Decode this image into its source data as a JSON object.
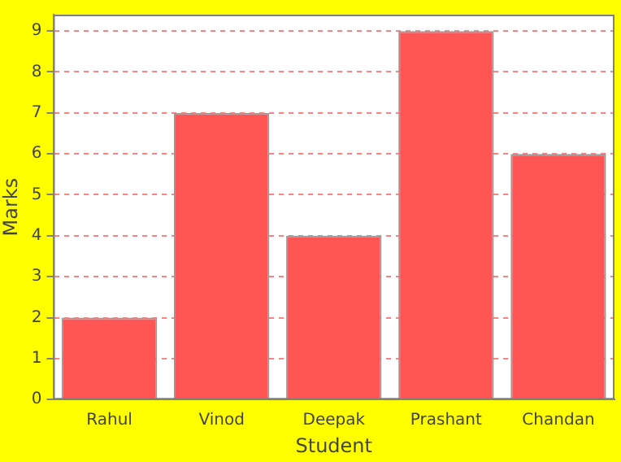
{
  "chart_data": {
    "type": "bar",
    "xlabel": "Student",
    "ylabel": "Marks",
    "categories": [
      "Rahul",
      "Vinod",
      "Deepak",
      "Prashant",
      "Chandan"
    ],
    "values": [
      2,
      7,
      4,
      9,
      6
    ],
    "color": "#ff5555",
    "ylim": [
      0,
      9.4
    ],
    "yticks": [
      0,
      1,
      2,
      3,
      4,
      5,
      6,
      7,
      8,
      9
    ],
    "grid": "y",
    "legend": false
  }
}
